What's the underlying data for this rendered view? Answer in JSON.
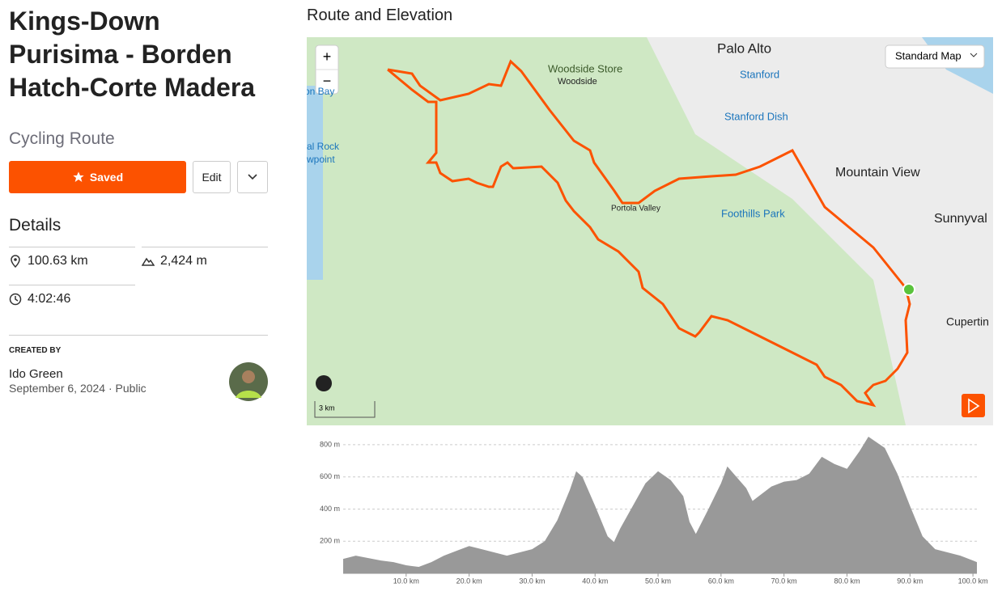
{
  "header": {
    "title": "Kings-Down Purisima - Borden Hatch-Corte Madera",
    "subtitle": "Cycling Route"
  },
  "actions": {
    "saved": "Saved",
    "edit": "Edit"
  },
  "details": {
    "heading": "Details",
    "distance": "100.63 km",
    "elevation_gain": "2,424 m",
    "moving_time": "4:02:46"
  },
  "creator": {
    "label": "CREATED BY",
    "name": "Ido Green",
    "date": "September 6, 2024",
    "visibility": "Public"
  },
  "map": {
    "heading": "Route and Elevation",
    "map_type": "Standard Map",
    "zoom_in": "+",
    "zoom_out": "−",
    "scale": "3 km",
    "labels": [
      "Palo Alto",
      "Woodside Store",
      "Woodside",
      "Stanford",
      "Stanford Dish",
      "Mountain View",
      "Portola Valley",
      "Foothills Park",
      "Sunnyval",
      "Cupertin",
      "on Bay",
      "al Rock",
      "wpoint"
    ]
  },
  "chart_data": {
    "type": "area",
    "color": "#999999",
    "x": [
      0,
      2,
      4,
      6,
      8,
      10,
      12,
      14,
      16,
      18,
      20,
      22,
      24,
      26,
      28,
      30,
      32,
      34,
      36,
      37,
      38,
      40,
      42,
      43,
      44,
      46,
      48,
      50,
      52,
      54,
      55,
      56,
      58,
      60,
      61,
      62,
      64,
      65,
      66,
      68,
      70,
      72,
      74,
      76,
      78,
      80,
      82,
      83.4,
      86,
      88,
      90,
      92,
      94,
      96,
      98,
      100,
      100.63
    ],
    "values": [
      90,
      110,
      95,
      80,
      70,
      50,
      40,
      70,
      110,
      140,
      170,
      150,
      130,
      110,
      130,
      150,
      200,
      330,
      520,
      635,
      600,
      420,
      230,
      195,
      280,
      420,
      560,
      635,
      580,
      480,
      320,
      245,
      400,
      560,
      665,
      620,
      530,
      450,
      480,
      540,
      570,
      580,
      620,
      725,
      680,
      650,
      760,
      850,
      780,
      620,
      420,
      230,
      150,
      130,
      110,
      80,
      70
    ],
    "xlim": [
      0,
      100.63
    ],
    "ylim": [
      0,
      860
    ],
    "xticks": [
      {
        "value": 10,
        "label": "10.0 km"
      },
      {
        "value": 20,
        "label": "20.0 km"
      },
      {
        "value": 30,
        "label": "30.0 km"
      },
      {
        "value": 40,
        "label": "40.0 km"
      },
      {
        "value": 50,
        "label": "50.0 km"
      },
      {
        "value": 60,
        "label": "60.0 km"
      },
      {
        "value": 70,
        "label": "70.0 km"
      },
      {
        "value": 80,
        "label": "80.0 km"
      },
      {
        "value": 90,
        "label": "90.0 km"
      },
      {
        "value": 100,
        "label": "100.0 km"
      }
    ],
    "yticks": [
      {
        "value": 200,
        "label": "200 m"
      },
      {
        "value": 400,
        "label": "400 m"
      },
      {
        "value": 600,
        "label": "600 m"
      },
      {
        "value": 800,
        "label": "800 m"
      }
    ],
    "grid": true
  }
}
